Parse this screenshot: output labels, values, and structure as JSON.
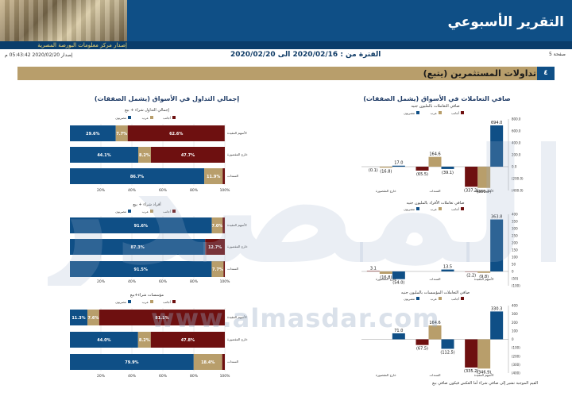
{
  "header": {
    "title": "التقرير الأسبوعي",
    "subbar_text": "إصدار مركز معلومات البورصة المصرية"
  },
  "meta": {
    "page": "صفحة 5",
    "period": "الفترة من : 2020/02/16 الى 2020/02/20",
    "issue": "إصدار 2020/02/20 05:43:42 م"
  },
  "section": {
    "number": "٤",
    "title": "تداولات المستثمرين (يتبع)"
  },
  "left_title": "إجمالي التداول في الأسواق (يشمل الصفقات)",
  "right_title": "صافي التعاملات في الأسواق (يشمل الصفقات)",
  "footnote": "القيم الموجبة تشير إلى صافي شراء أما العكس فيكون صافي بيع",
  "watermark": "www.almasdar.com",
  "colors": {
    "egyptians": "#0f4f86",
    "arabs": "#b89e6b",
    "foreigners": "#6e1010"
  },
  "chart_data": [
    {
      "type": "bar",
      "orientation": "horizontal-stacked",
      "title": "إجمالي التداول شراء + بيع",
      "legend": [
        "مصريون",
        "عرب",
        "أجانب"
      ],
      "categories": [
        "الأسهم المقيدة",
        "خارج المقصورة",
        "السندات"
      ],
      "series": [
        {
          "name": "مصريون",
          "values": [
            29.6,
            44.1,
            86.7
          ]
        },
        {
          "name": "عرب",
          "values": [
            7.7,
            8.2,
            11.9
          ]
        },
        {
          "name": "أجانب",
          "values": [
            62.6,
            47.7,
            1.4
          ]
        }
      ],
      "data_labels": [
        [
          "29.6%",
          "7.7%",
          "62.6%"
        ],
        [
          "44.1%",
          "8.2%",
          "47.7%"
        ],
        [
          "86.7%",
          "11.9%",
          ""
        ]
      ],
      "xticks": [
        "0%",
        "20%",
        "40%",
        "60%",
        "80%",
        "100%"
      ]
    },
    {
      "type": "bar",
      "orientation": "horizontal-stacked",
      "title": "أفراد شراء + بيع",
      "legend": [
        "مصريون",
        "عرب",
        "أجانب"
      ],
      "categories": [
        "الأسهم المقيدة",
        "خارج المقصورة",
        "السندات"
      ],
      "series": [
        {
          "name": "مصريون",
          "values": [
            91.6,
            87.3,
            91.5
          ]
        },
        {
          "name": "عرب",
          "values": [
            7.0,
            0.0,
            7.7
          ]
        },
        {
          "name": "أجانب",
          "values": [
            1.4,
            12.7,
            0.8
          ]
        }
      ],
      "data_labels": [
        [
          "91.6%",
          "7.0%",
          ""
        ],
        [
          "87.3%",
          "",
          "12.7%"
        ],
        [
          "91.5%",
          "7.7%",
          ""
        ]
      ],
      "xticks": [
        "0%",
        "20%",
        "40%",
        "60%",
        "80%",
        "100%"
      ]
    },
    {
      "type": "bar",
      "orientation": "horizontal-stacked",
      "title": "مؤسسات شراء+بيع",
      "legend": [
        "مصريون",
        "عرب",
        "أجانب"
      ],
      "categories": [
        "الأسهم المقيدة",
        "خارج المقصورة",
        "السندات"
      ],
      "series": [
        {
          "name": "مصريون",
          "values": [
            11.3,
            44.0,
            79.9
          ]
        },
        {
          "name": "عرب",
          "values": [
            7.6,
            8.2,
            18.4
          ]
        },
        {
          "name": "أجانب",
          "values": [
            81.1,
            47.8,
            1.7
          ]
        }
      ],
      "data_labels": [
        [
          "11.3%",
          "7.6%",
          "81.1%"
        ],
        [
          "44.0%",
          "8.2%",
          "47.8%"
        ],
        [
          "79.9%",
          "18.4%",
          ""
        ]
      ],
      "xticks": [
        "0%",
        "20%",
        "40%",
        "60%",
        "80%",
        "100%"
      ]
    },
    {
      "type": "bar",
      "title": "صافي التعاملات بالمليون جنيه",
      "legend": [
        "مصريون",
        "عرب",
        "أجانب"
      ],
      "categories": [
        "الأسهم المقيدة",
        "السندات",
        "خارج المقصورة"
      ],
      "series": [
        {
          "name": "مصريون",
          "values": [
            694.0,
            -39.1,
            17.0
          ]
        },
        {
          "name": "عرب",
          "values": [
            -356.7,
            164.6,
            -16.8
          ]
        },
        {
          "name": "أجانب",
          "values": [
            -337.3,
            -65.5,
            -0.1
          ]
        }
      ],
      "data_labels": [
        [
          "694.0",
          "(356.7)",
          "(337.3)"
        ],
        [
          "(39.1)",
          "164.6",
          "(65.5)"
        ],
        [
          "17.0",
          "(16.8)",
          "(0.1)"
        ]
      ],
      "yticks": [
        "800.0",
        "600.0",
        "400.0",
        "200.0",
        "0.0",
        "(200.0)",
        "(400.0)"
      ],
      "ylim": [
        -400,
        800
      ]
    },
    {
      "type": "bar",
      "title": "صافي تعاملات الأفراد بالمليون جنيه",
      "legend": [
        "مصريون",
        "عرب",
        "أجانب"
      ],
      "categories": [
        "الأسهم المقيدة",
        "السندات",
        "خارج المقصورة"
      ],
      "series": [
        {
          "name": "مصريون",
          "values": [
            363.8,
            13.5,
            -54.0
          ]
        },
        {
          "name": "عرب",
          "values": [
            -9.8,
            0.0,
            -16.8
          ]
        },
        {
          "name": "أجانب",
          "values": [
            -2.2,
            0.0,
            3.1
          ]
        }
      ],
      "data_labels": [
        [
          "363.8",
          "(9.8)",
          "(2.2)"
        ],
        [
          "13.5",
          "",
          ""
        ],
        [
          "(54.0)",
          "(16.8)",
          "3.1"
        ]
      ],
      "yticks": [
        "400",
        "350",
        "300",
        "250",
        "200",
        "150",
        "100",
        "50",
        "0",
        "(50)",
        "(100)"
      ],
      "ylim": [
        -100,
        400
      ]
    },
    {
      "type": "bar",
      "title": "صافي التعاملات المؤسسات بالمليون جنيه",
      "legend": [
        "مصريون",
        "عرب",
        "أجانب"
      ],
      "categories": [
        "الأسهم المقيدة",
        "السندات",
        "خارج المقصورة"
      ],
      "series": [
        {
          "name": "مصريون",
          "values": [
            330.3,
            -112.5,
            71.0
          ]
        },
        {
          "name": "عرب",
          "values": [
            -346.9,
            164.6,
            0.0
          ]
        },
        {
          "name": "أجانب",
          "values": [
            -335.2,
            -67.5,
            0.0
          ]
        }
      ],
      "data_labels": [
        [
          "330.3",
          "(346.9)",
          "(335.2)"
        ],
        [
          "(112.5)",
          "164.6",
          "(67.5)"
        ],
        [
          "71.0",
          "",
          ""
        ]
      ],
      "yticks": [
        "400",
        "300",
        "200",
        "100",
        "0",
        "(100)",
        "(200)",
        "(300)",
        "(400)"
      ],
      "ylim": [
        -400,
        400
      ]
    }
  ]
}
